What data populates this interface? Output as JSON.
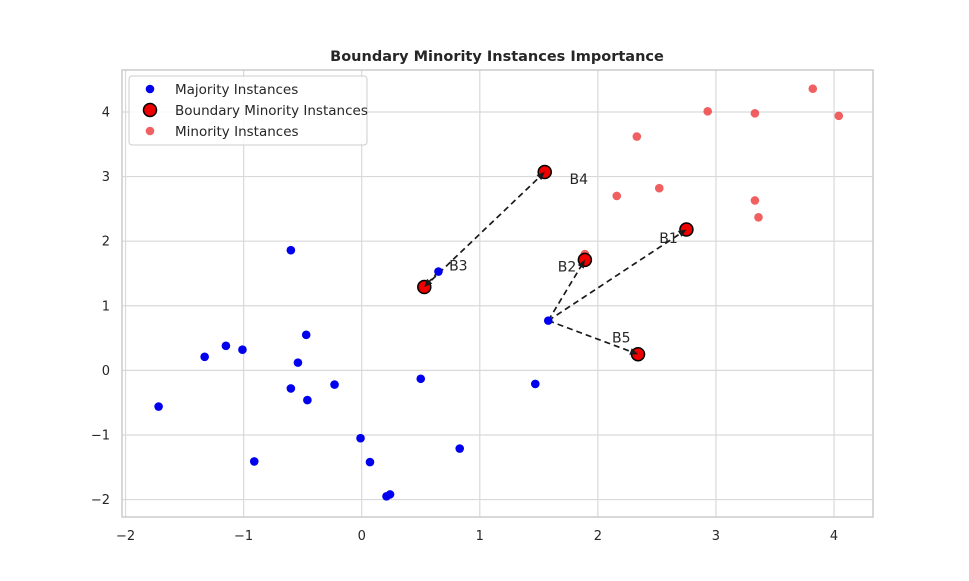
{
  "chart_data": {
    "type": "scatter",
    "title": "Boundary Minority Instances Importance",
    "xlabel": "",
    "ylabel": "",
    "xlim": [
      -2.03,
      4.33
    ],
    "ylim": [
      -2.27,
      4.65
    ],
    "grid": true,
    "xticks": [
      -2,
      -1,
      0,
      1,
      2,
      3,
      4
    ],
    "yticks": [
      -2,
      -1,
      0,
      1,
      2,
      3,
      4
    ],
    "xtick_labels": [
      "−2",
      "−1",
      "0",
      "1",
      "2",
      "3",
      "4"
    ],
    "ytick_labels": [
      "−2",
      "−1",
      "0",
      "1",
      "2",
      "3",
      "4"
    ],
    "legend_position": "top-left",
    "series": [
      {
        "name": "Majority Instances",
        "color": "#0000ee",
        "points": [
          [
            -1.72,
            -0.56
          ],
          [
            -1.33,
            0.21
          ],
          [
            -1.15,
            0.38
          ],
          [
            -1.01,
            0.32
          ],
          [
            -0.91,
            -1.41
          ],
          [
            -0.6,
            1.86
          ],
          [
            -0.6,
            -0.28
          ],
          [
            -0.54,
            0.12
          ],
          [
            -0.47,
            0.55
          ],
          [
            -0.46,
            -0.46
          ],
          [
            -0.23,
            -0.22
          ],
          [
            -0.01,
            -1.05
          ],
          [
            0.07,
            -1.42
          ],
          [
            0.21,
            -1.95
          ],
          [
            0.24,
            -1.92
          ],
          [
            0.5,
            -0.13
          ],
          [
            0.65,
            1.53
          ],
          [
            0.83,
            -1.21
          ],
          [
            1.47,
            -0.21
          ],
          [
            1.58,
            0.77
          ]
        ]
      },
      {
        "name": "Minority Instances",
        "color": "#ee4444",
        "points": [
          [
            1.89,
            1.8
          ],
          [
            2.16,
            2.7
          ],
          [
            2.33,
            3.62
          ],
          [
            2.52,
            2.82
          ],
          [
            2.93,
            4.01
          ],
          [
            3.33,
            3.98
          ],
          [
            3.33,
            2.63
          ],
          [
            3.36,
            2.37
          ],
          [
            3.82,
            4.36
          ],
          [
            4.04,
            3.94
          ]
        ]
      },
      {
        "name": "Boundary Minority Instances",
        "color": "#ee0000",
        "edge_color": "#000000",
        "points": [
          [
            2.75,
            2.18
          ],
          [
            1.89,
            1.71
          ],
          [
            0.53,
            1.29
          ],
          [
            1.55,
            3.07
          ],
          [
            2.34,
            0.25
          ]
        ]
      }
    ],
    "annotations": [
      {
        "text": "B1",
        "x": 2.75,
        "y": 2.18,
        "from": [
          1.58,
          0.77
        ],
        "label_x": 2.52,
        "label_y": 2.05
      },
      {
        "text": "B2",
        "x": 1.89,
        "y": 1.71,
        "from": [
          1.58,
          0.77
        ],
        "label_x": 1.66,
        "label_y": 1.61
      },
      {
        "text": "B3",
        "x": 0.53,
        "y": 1.29,
        "from": [
          0.65,
          1.53
        ],
        "label_x": 0.74,
        "label_y": 1.62
      },
      {
        "text": "B4",
        "x": 1.55,
        "y": 3.07,
        "from": [
          0.53,
          1.29
        ],
        "label_x": 1.76,
        "label_y": 2.96
      },
      {
        "text": "B5",
        "x": 2.34,
        "y": 0.25,
        "from": [
          1.58,
          0.77
        ],
        "label_x": 2.12,
        "label_y": 0.51
      }
    ],
    "legend": [
      {
        "label": "Majority Instances",
        "marker": "majority"
      },
      {
        "label": "Boundary Minority Instances",
        "marker": "boundary"
      },
      {
        "label": "Minority Instances",
        "marker": "minority"
      }
    ]
  }
}
